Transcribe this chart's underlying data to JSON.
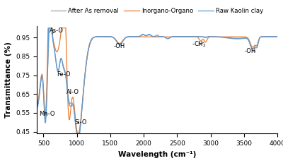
{
  "xlabel": "Wavelength (cm⁻¹)",
  "ylabel": "Transmittance (%)",
  "xlim": [
    400,
    4000
  ],
  "ylim": [
    0.44,
    1.01
  ],
  "yticks": [
    0.45,
    0.55,
    0.65,
    0.75,
    0.85,
    0.95
  ],
  "yticklabels": [
    "0.45",
    "0.55",
    "0.65",
    "0.75",
    "0.85",
    "0.95"
  ],
  "xticks": [
    500,
    1000,
    1500,
    2000,
    2500,
    3000,
    3500,
    4000
  ],
  "colors": {
    "raw_kaolin": "#5B9BD5",
    "inorgano": "#ED7D31",
    "after_as": "#A0A0A0"
  },
  "legend_labels": [
    "Raw Kaolin clay",
    "Inorgano-Organo",
    "After As removal"
  ],
  "background_color": "#FFFFFF"
}
